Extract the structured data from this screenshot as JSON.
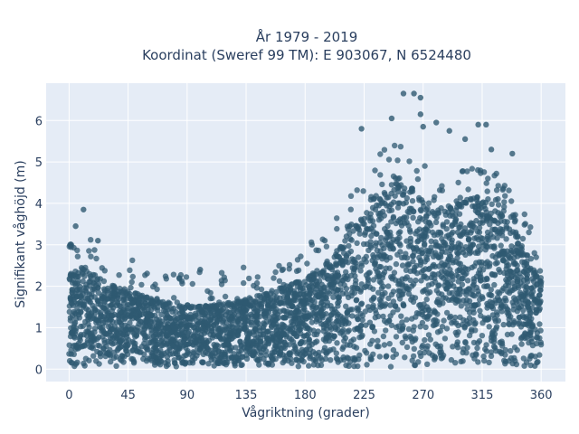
{
  "chart_data": {
    "type": "scatter",
    "title_line1": "År 1979 - 2019",
    "title_line2": "Koordinat (Sweref 99 TM): E 903067, N 6524480",
    "xlabel": "Vågriktning (grader)",
    "ylabel": "Signifikant våghöjd (m)",
    "xlim": [
      -17.5,
      378.5
    ],
    "ylim": [
      -0.3,
      6.9
    ],
    "xticks": [
      0,
      45,
      90,
      135,
      180,
      225,
      270,
      315,
      360
    ],
    "yticks": [
      0,
      1,
      2,
      3,
      4,
      5,
      6
    ],
    "grid": true,
    "marker_color": "#2f5a72",
    "plot_background": "#e5ecf6",
    "envelope": {
      "x": [
        0,
        10,
        20,
        30,
        45,
        60,
        75,
        90,
        105,
        120,
        135,
        150,
        165,
        180,
        195,
        205,
        215,
        225,
        235,
        245,
        255,
        265,
        275,
        285,
        295,
        305,
        315,
        325,
        335,
        345,
        355,
        360
      ],
      "y_max_dense": [
        2.3,
        2.5,
        2.3,
        2.1,
        1.9,
        1.75,
        1.6,
        1.55,
        1.55,
        1.6,
        1.7,
        1.85,
        2.0,
        2.2,
        2.5,
        2.9,
        3.4,
        3.9,
        4.4,
        4.7,
        4.6,
        4.3,
        4.0,
        3.9,
        4.0,
        4.1,
        4.2,
        4.0,
        3.6,
        3.1,
        2.5,
        2.3
      ]
    },
    "highlighted_points": [
      {
        "x": 5,
        "y": 3.45
      },
      {
        "x": 11,
        "y": 3.85
      },
      {
        "x": 22,
        "y": 3.1
      },
      {
        "x": 84,
        "y": 2.2
      },
      {
        "x": 100,
        "y": 2.4
      },
      {
        "x": 195,
        "y": 3.1
      },
      {
        "x": 214,
        "y": 3.45
      },
      {
        "x": 223,
        "y": 5.8
      },
      {
        "x": 246,
        "y": 6.05
      },
      {
        "x": 255,
        "y": 6.65
      },
      {
        "x": 263,
        "y": 6.65
      },
      {
        "x": 268,
        "y": 6.55
      },
      {
        "x": 268,
        "y": 6.15
      },
      {
        "x": 270,
        "y": 5.85
      },
      {
        "x": 280,
        "y": 5.95
      },
      {
        "x": 290,
        "y": 5.75
      },
      {
        "x": 302,
        "y": 5.55
      },
      {
        "x": 312,
        "y": 5.9
      },
      {
        "x": 318,
        "y": 5.9
      },
      {
        "x": 322,
        "y": 5.3
      },
      {
        "x": 338,
        "y": 5.2
      }
    ]
  }
}
